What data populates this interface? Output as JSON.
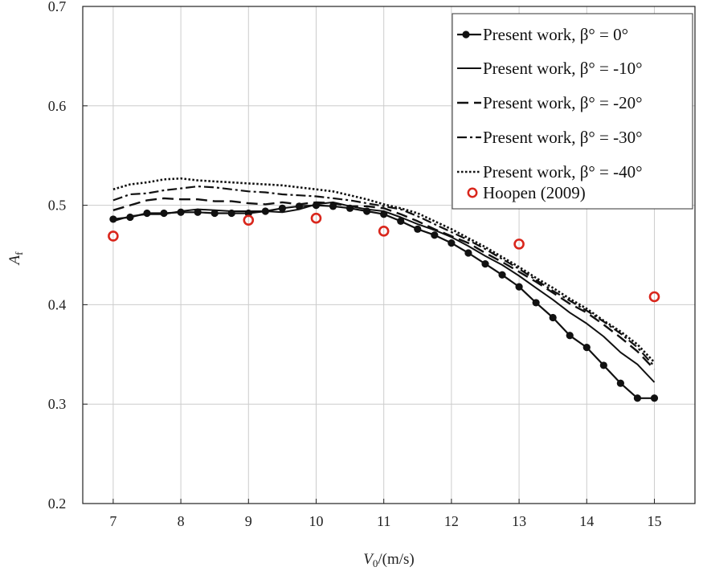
{
  "chart_data": {
    "type": "line",
    "xlabel": "V0/(m/s)",
    "ylabel": "Af",
    "xlim": [
      6.55,
      15.6
    ],
    "ylim": [
      0.2,
      0.7
    ],
    "xticks": [
      7,
      8,
      9,
      10,
      11,
      12,
      13,
      14,
      15
    ],
    "yticks": [
      0.2,
      0.3,
      0.4,
      0.5,
      0.6,
      0.7
    ],
    "x_tick_labels": [
      "7",
      "8",
      "9",
      "10",
      "11",
      "12",
      "13",
      "14",
      "15"
    ],
    "y_tick_labels": [
      "0.2",
      "0.3",
      "0.4",
      "0.5",
      "0.6",
      "0.7"
    ],
    "grid": true,
    "legend_position": "top-right",
    "series": [
      {
        "name": "Present work, β° = 0°",
        "style": "solid-markers",
        "x": [
          7.0,
          7.25,
          7.5,
          7.75,
          8.0,
          8.25,
          8.5,
          8.75,
          9.0,
          9.25,
          9.5,
          9.75,
          10.0,
          10.25,
          10.5,
          10.75,
          11.0,
          11.25,
          11.5,
          11.75,
          12.0,
          12.25,
          12.5,
          12.75,
          13.0,
          13.25,
          13.5,
          13.75,
          14.0,
          14.25,
          14.5,
          14.75,
          15.0
        ],
        "y": [
          0.486,
          0.488,
          0.492,
          0.492,
          0.493,
          0.493,
          0.492,
          0.492,
          0.492,
          0.494,
          0.497,
          0.499,
          0.5,
          0.499,
          0.497,
          0.494,
          0.491,
          0.484,
          0.476,
          0.47,
          0.462,
          0.452,
          0.441,
          0.43,
          0.418,
          0.402,
          0.387,
          0.369,
          0.357,
          0.339,
          0.321,
          0.306,
          0.306
        ]
      },
      {
        "name": "Present work, β° = -10°",
        "style": "solid",
        "x": [
          7.0,
          7.25,
          7.5,
          7.75,
          8.0,
          8.25,
          8.5,
          8.75,
          9.0,
          9.25,
          9.5,
          9.75,
          10.0,
          10.25,
          10.5,
          10.75,
          11.0,
          11.25,
          11.5,
          11.75,
          12.0,
          12.25,
          12.5,
          12.75,
          13.0,
          13.25,
          13.5,
          13.75,
          14.0,
          14.25,
          14.5,
          14.75,
          15.0
        ],
        "y": [
          0.484,
          0.489,
          0.491,
          0.491,
          0.494,
          0.496,
          0.495,
          0.494,
          0.494,
          0.494,
          0.493,
          0.496,
          0.501,
          0.503,
          0.499,
          0.496,
          0.494,
          0.488,
          0.481,
          0.475,
          0.468,
          0.459,
          0.449,
          0.44,
          0.429,
          0.417,
          0.405,
          0.392,
          0.381,
          0.368,
          0.352,
          0.34,
          0.322
        ]
      },
      {
        "name": "Present work, β° = -20°",
        "style": "dashed",
        "x": [
          7.0,
          7.25,
          7.5,
          7.75,
          8.0,
          8.25,
          8.5,
          8.75,
          9.0,
          9.25,
          9.5,
          9.75,
          10.0,
          10.25,
          10.5,
          10.75,
          11.0,
          11.25,
          11.5,
          11.75,
          12.0,
          12.25,
          12.5,
          12.75,
          13.0,
          13.25,
          13.5,
          13.75,
          14.0,
          14.25,
          14.5,
          14.75,
          15.0
        ],
        "y": [
          0.495,
          0.5,
          0.505,
          0.507,
          0.506,
          0.506,
          0.504,
          0.504,
          0.502,
          0.501,
          0.503,
          0.501,
          0.503,
          0.502,
          0.499,
          0.499,
          0.497,
          0.491,
          0.484,
          0.476,
          0.469,
          0.462,
          0.452,
          0.443,
          0.433,
          0.423,
          0.412,
          0.401,
          0.392,
          0.38,
          0.367,
          0.353,
          0.335
        ]
      },
      {
        "name": "Present work, β° = -30°",
        "style": "dashdot",
        "x": [
          7.0,
          7.25,
          7.5,
          7.75,
          8.0,
          8.25,
          8.5,
          8.75,
          9.0,
          9.25,
          9.5,
          9.75,
          10.0,
          10.25,
          10.5,
          10.75,
          11.0,
          11.25,
          11.5,
          11.75,
          12.0,
          12.25,
          12.5,
          12.75,
          13.0,
          13.25,
          13.5,
          13.75,
          14.0,
          14.25,
          14.5,
          14.75,
          15.0
        ],
        "y": [
          0.505,
          0.511,
          0.512,
          0.515,
          0.517,
          0.519,
          0.518,
          0.516,
          0.514,
          0.513,
          0.511,
          0.51,
          0.509,
          0.507,
          0.505,
          0.502,
          0.499,
          0.496,
          0.489,
          0.481,
          0.473,
          0.465,
          0.456,
          0.446,
          0.436,
          0.425,
          0.414,
          0.404,
          0.394,
          0.383,
          0.371,
          0.357,
          0.338
        ]
      },
      {
        "name": "Present work, β° = -40°",
        "style": "dotted",
        "x": [
          7.0,
          7.25,
          7.5,
          7.75,
          8.0,
          8.25,
          8.5,
          8.75,
          9.0,
          9.25,
          9.5,
          9.75,
          10.0,
          10.25,
          10.5,
          10.75,
          11.0,
          11.25,
          11.5,
          11.75,
          12.0,
          12.25,
          12.5,
          12.75,
          13.0,
          13.25,
          13.5,
          13.75,
          14.0,
          14.25,
          14.5,
          14.75,
          15.0
        ],
        "y": [
          0.516,
          0.521,
          0.523,
          0.526,
          0.527,
          0.525,
          0.524,
          0.523,
          0.522,
          0.521,
          0.52,
          0.518,
          0.516,
          0.514,
          0.51,
          0.506,
          0.501,
          0.497,
          0.492,
          0.484,
          0.476,
          0.467,
          0.458,
          0.448,
          0.438,
          0.427,
          0.417,
          0.406,
          0.396,
          0.384,
          0.373,
          0.36,
          0.342
        ]
      },
      {
        "name": "Hoopen (2009)",
        "style": "open-circles-red",
        "x": [
          7.0,
          9.0,
          10.0,
          11.0,
          13.0,
          15.0
        ],
        "y": [
          0.469,
          0.485,
          0.487,
          0.474,
          0.461,
          0.408
        ]
      }
    ]
  },
  "colors": {
    "line": "#111111",
    "hoopen_marker": "#d9261c",
    "grid": "#cccccc"
  }
}
